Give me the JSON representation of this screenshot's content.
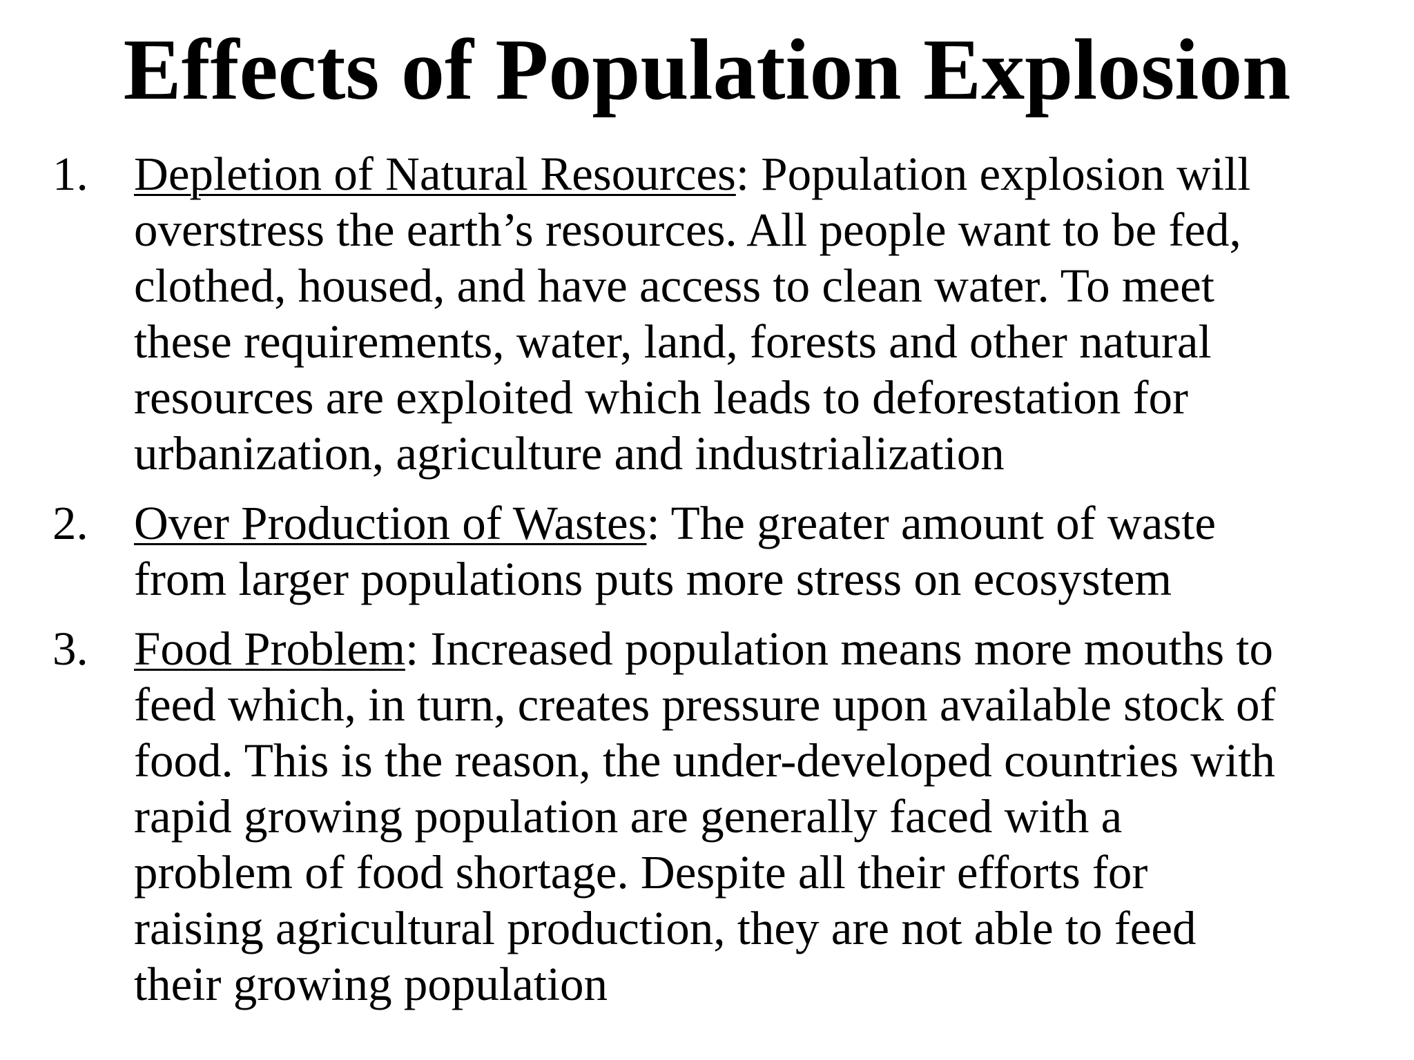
{
  "slide": {
    "title": "Effects of Population Explosion",
    "items": [
      {
        "number": "1.",
        "heading": "Depletion of Natural Resources",
        "separator": ":",
        "lines": [
          " Population explosion will",
          "overstress the earth’s resources. All people want to be fed,",
          "clothed, housed, and have access to clean water. To meet",
          "these requirements, water, land, forests and other natural",
          "resources are exploited which leads to deforestation for",
          "urbanization, agriculture and industrialization"
        ]
      },
      {
        "number": "2.",
        "heading": "Over Production of Wastes",
        "separator": ":",
        "lines": [
          " The greater amount of waste",
          "from larger populations puts more stress on ecosystem"
        ]
      },
      {
        "number": "3.",
        "heading": "Food Problem",
        "separator": ":",
        "lines": [
          " Increased population means more mouths to",
          "feed which, in turn, creates pressure upon available stock of",
          "food. This is the reason, the under-developed countries with",
          "rapid growing population are generally faced with a",
          "problem of food shortage. Despite all their efforts for",
          "raising agricultural production, they are not able to feed",
          "their growing population"
        ]
      }
    ]
  }
}
